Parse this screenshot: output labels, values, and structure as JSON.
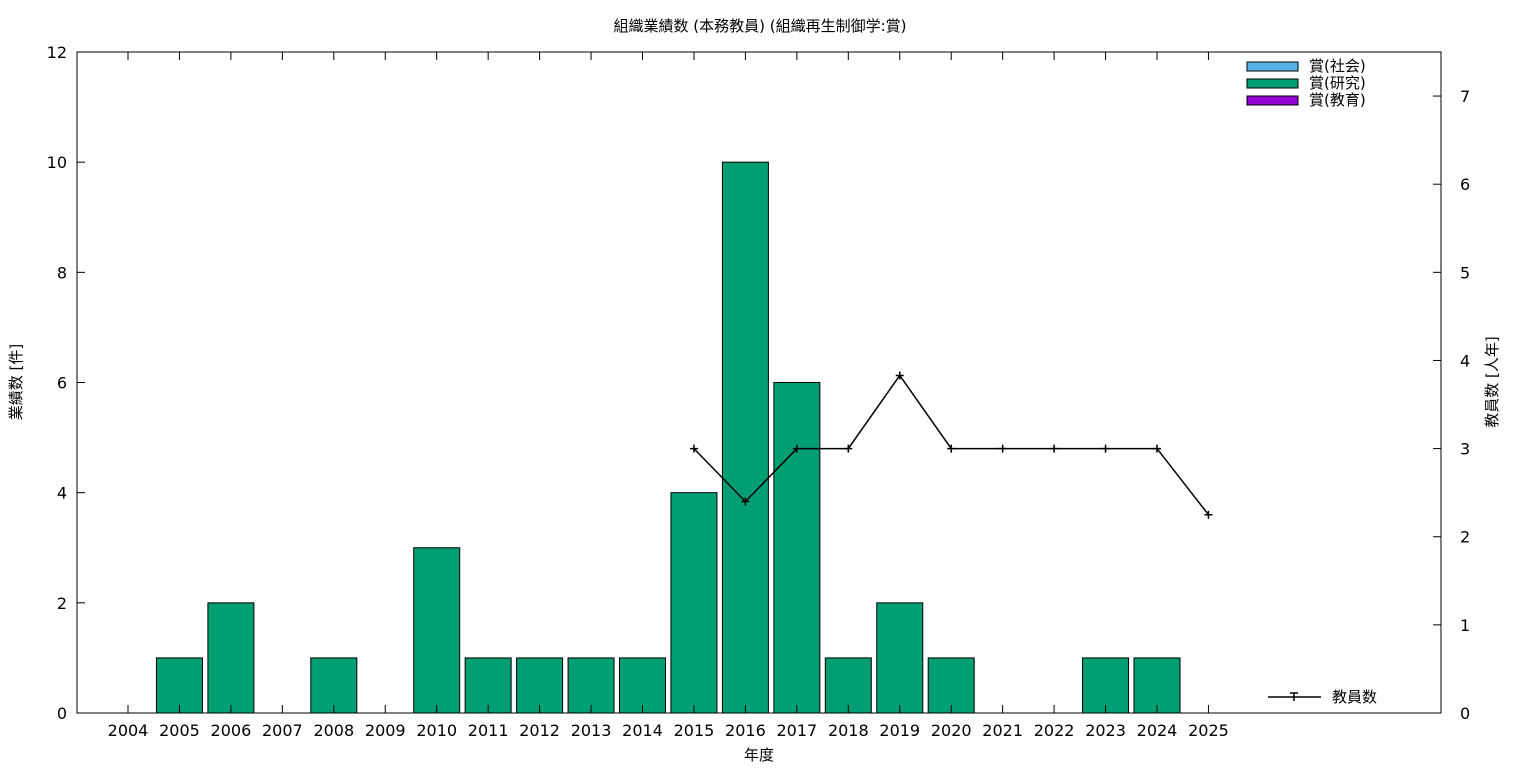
{
  "chart_data": {
    "type": "bar",
    "title": "組織業績数 (本務教員) (組織再生制御学:賞)",
    "xlabel": "年度",
    "ylabel": "業績数 [件]",
    "y2label": "教員数 [人年]",
    "categories": [
      "2004",
      "2005",
      "2006",
      "2007",
      "2008",
      "2009",
      "2010",
      "2011",
      "2012",
      "2013",
      "2014",
      "2015",
      "2016",
      "2017",
      "2018",
      "2019",
      "2020",
      "2021",
      "2022",
      "2023",
      "2024",
      "2025"
    ],
    "ylim": [
      0,
      12
    ],
    "yticks": [
      "0",
      "2",
      "4",
      "6",
      "8",
      "10",
      "12"
    ],
    "y2lim": [
      0,
      7.5
    ],
    "y2ticks": [
      "0",
      "1",
      "2",
      "3",
      "4",
      "5",
      "6",
      "7"
    ],
    "legend_position": "top-right",
    "grid": false,
    "series": [
      {
        "name": "賞(社会)",
        "color": "#56b4e9",
        "values": [
          0,
          0,
          0,
          0,
          0,
          0,
          0,
          0,
          0,
          0,
          0,
          0,
          0,
          0,
          0,
          0,
          0,
          0,
          0,
          0,
          0,
          0
        ]
      },
      {
        "name": "賞(研究)",
        "color": "#009e73",
        "values": [
          0,
          1,
          2,
          0,
          1,
          0,
          3,
          1,
          1,
          1,
          1,
          4,
          10,
          6,
          1,
          2,
          1,
          0,
          0,
          1,
          1,
          0
        ]
      },
      {
        "name": "賞(教育)",
        "color": "#9400d3",
        "values": [
          0,
          0,
          0,
          0,
          0,
          0,
          0,
          0,
          0,
          0,
          0,
          0,
          0,
          0,
          0,
          0,
          0,
          0,
          0,
          0,
          0,
          0
        ]
      }
    ],
    "line_series": {
      "name": "教員数",
      "color": "#000000",
      "x": [
        "2015",
        "2016",
        "2017",
        "2018",
        "2019",
        "2020",
        "2021",
        "2022",
        "2023",
        "2024",
        "2025"
      ],
      "values": [
        3,
        2.4,
        3,
        3,
        3.83,
        3,
        3,
        3,
        3,
        3,
        2.25
      ]
    }
  }
}
